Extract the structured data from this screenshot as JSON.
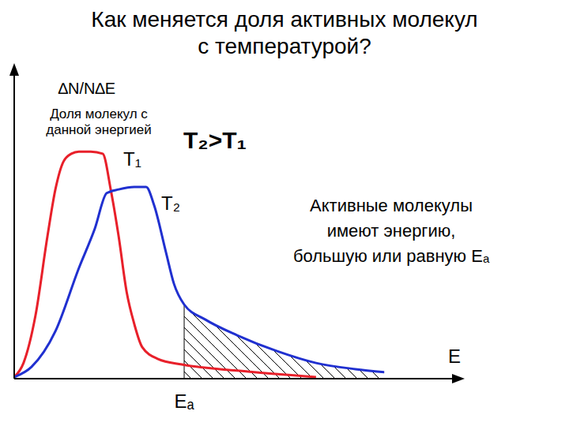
{
  "chart_data": {
    "type": "line",
    "title": "Как меняется доля активных молекул\nс температурой?",
    "y_label": "∆N/N∆E",
    "annotations": [
      "Доля молекул с\nданной энергией",
      "T₂>T₁",
      "Активные молекулы\nимеют энергию,\nбольшую или равную Eₐ"
    ],
    "x_label": "E",
    "xlim": [
      0,
      100
    ],
    "ylim": [
      0,
      100
    ],
    "tick_labels": false,
    "threshold": {
      "label": "Eₐ",
      "x": 38.4
    },
    "series": [
      {
        "name": "T₁",
        "color": "#e8202a",
        "x": [
          0,
          2.1,
          4.8,
          7.5,
          9.3,
          11.1,
          12.9,
          14.6,
          17.3,
          20,
          21.8,
          23.6,
          25.4,
          27.1,
          28.9,
          32.5,
          37.9,
          50.4,
          68.2
        ],
        "values": [
          0.5,
          5.1,
          20.5,
          46.2,
          61.5,
          70.5,
          73.1,
          73.8,
          73.8,
          73.1,
          61.5,
          46.2,
          28.2,
          17.9,
          10.3,
          6.4,
          4.6,
          2.6,
          0.5
        ]
      },
      {
        "name": "T₂",
        "color": "#2030d0",
        "x": [
          0,
          3.9,
          9.3,
          14.6,
          18.2,
          20.9,
          23.6,
          27.1,
          29.8,
          31.6,
          34.3,
          36.1,
          38.4,
          43.2,
          50.4,
          59.3,
          68.2,
          77.1,
          83.6
        ],
        "values": [
          0.5,
          3.8,
          15.4,
          35.9,
          48.7,
          60.3,
          61.5,
          62.3,
          62.3,
          56.4,
          41,
          30.8,
          24.1,
          19.2,
          14.1,
          9,
          5.1,
          3.1,
          2.1
        ]
      }
    ]
  }
}
